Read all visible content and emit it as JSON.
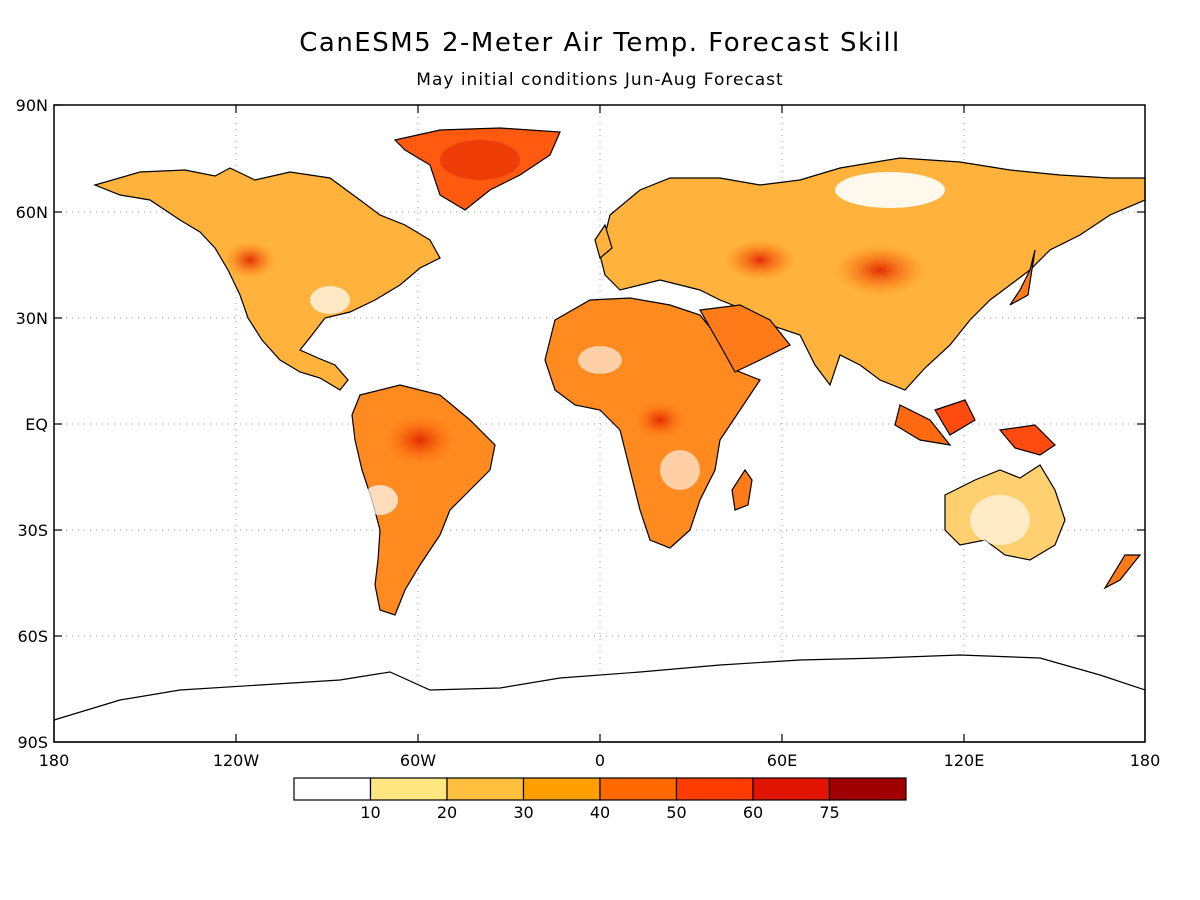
{
  "title": "CanESM5 2-Meter Air Temp. Forecast Skill",
  "subtitle": "May initial conditions  Jun-Aug Forecast",
  "lat_labels": [
    "90N",
    "60N",
    "30N",
    "EQ",
    "30S",
    "60S",
    "90S"
  ],
  "lon_labels": [
    "180",
    "120W",
    "60W",
    "0",
    "60E",
    "120E",
    "180"
  ],
  "colorbar": {
    "colors": [
      "#ffffff",
      "#ffe680",
      "#ffc040",
      "#ffa000",
      "#ff6a00",
      "#ff3c00",
      "#e01400",
      "#a00000"
    ],
    "labels": [
      "10",
      "20",
      "30",
      "40",
      "50",
      "60",
      "75"
    ]
  }
}
